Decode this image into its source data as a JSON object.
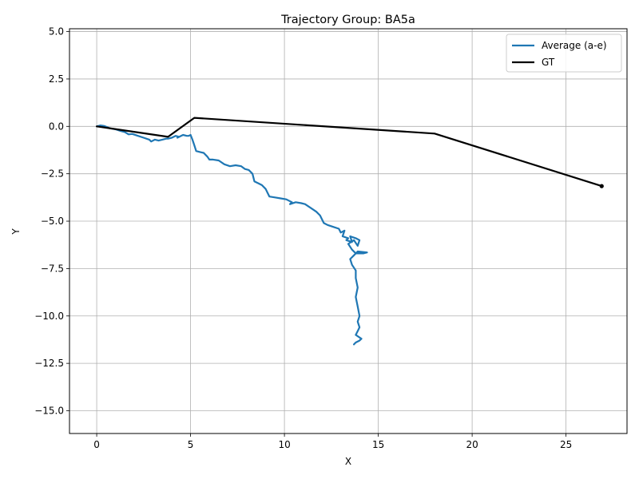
{
  "chart_data": {
    "type": "line",
    "title": "Trajectory Group: BA5a",
    "xlabel": "X",
    "ylabel": "Y",
    "xlim": [
      -1.45,
      28.25
    ],
    "ylim": [
      -16.2,
      5.15
    ],
    "xticks": [
      0,
      5,
      10,
      15,
      20,
      25
    ],
    "xtick_labels": [
      "0",
      "5",
      "10",
      "15",
      "20",
      "25"
    ],
    "yticks": [
      5.0,
      2.5,
      0.0,
      -2.5,
      -5.0,
      -7.5,
      -10.0,
      -12.5,
      -15.0
    ],
    "ytick_labels": [
      "5.0",
      "2.5",
      "0.0",
      "−2.5",
      "−5.0",
      "−7.5",
      "−10.0",
      "−12.5",
      "−15.0"
    ],
    "grid": true,
    "legend_position": "top-right",
    "series": [
      {
        "name": "Average (a-e)",
        "color": "#1f77b4",
        "x": [
          0,
          0.2,
          0.4,
          0.7,
          1.0,
          1.3,
          1.5,
          1.7,
          1.9,
          2.2,
          2.5,
          2.8,
          2.9,
          3.1,
          3.3,
          3.5,
          3.7,
          3.8,
          4.0,
          4.2,
          4.4,
          4.3,
          4.6,
          4.8,
          4.9,
          5.0,
          5.1,
          5.2,
          5.3,
          5.5,
          5.7,
          5.9,
          6.0,
          6.2,
          6.5,
          6.8,
          7.1,
          7.4,
          7.7,
          7.9,
          8.1,
          8.3,
          8.4,
          8.6,
          8.8,
          9.0,
          9.1,
          9.2,
          9.5,
          9.8,
          10.1,
          10.4,
          10.3,
          10.6,
          10.9,
          11.1,
          11.4,
          11.7,
          11.9,
          12.0,
          12.1,
          12.3,
          12.6,
          12.9,
          13.0,
          13.2,
          13.1,
          13.4,
          13.3,
          13.6,
          13.5,
          13.8,
          14.0,
          13.9,
          13.7,
          13.4,
          13.6,
          13.8,
          14.2,
          14.4,
          13.9,
          13.7,
          13.5,
          13.6,
          13.8,
          13.8,
          13.9,
          13.8,
          13.9,
          14.0,
          13.9,
          14.0,
          13.9,
          13.8,
          14.1,
          14.0,
          13.8,
          13.7
        ],
        "y": [
          0,
          0.05,
          0.02,
          -0.1,
          -0.15,
          -0.25,
          -0.3,
          -0.42,
          -0.4,
          -0.5,
          -0.6,
          -0.7,
          -0.8,
          -0.7,
          -0.75,
          -0.7,
          -0.65,
          -0.65,
          -0.6,
          -0.5,
          -0.55,
          -0.6,
          -0.45,
          -0.5,
          -0.5,
          -0.45,
          -0.7,
          -1.0,
          -1.3,
          -1.35,
          -1.4,
          -1.6,
          -1.75,
          -1.75,
          -1.8,
          -2.0,
          -2.1,
          -2.05,
          -2.1,
          -2.25,
          -2.3,
          -2.5,
          -2.9,
          -3.0,
          -3.1,
          -3.3,
          -3.5,
          -3.7,
          -3.75,
          -3.8,
          -3.85,
          -4.0,
          -4.1,
          -4.0,
          -4.05,
          -4.1,
          -4.3,
          -4.5,
          -4.7,
          -4.9,
          -5.1,
          -5.2,
          -5.3,
          -5.4,
          -5.6,
          -5.5,
          -5.8,
          -5.9,
          -6.0,
          -6.1,
          -5.8,
          -5.9,
          -6.0,
          -6.3,
          -6.0,
          -6.2,
          -6.5,
          -6.7,
          -6.7,
          -6.65,
          -6.6,
          -6.8,
          -7.0,
          -7.3,
          -7.6,
          -8.0,
          -8.5,
          -9.0,
          -9.5,
          -10.0,
          -10.3,
          -10.6,
          -10.8,
          -11.0,
          -11.2,
          -11.3,
          -11.4,
          -11.5
        ]
      },
      {
        "name": "GT",
        "color": "#000000",
        "x": [
          0,
          3.8,
          5.2,
          18.0,
          26.9
        ],
        "y": [
          0,
          -0.55,
          0.45,
          -0.38,
          -3.15
        ]
      }
    ]
  }
}
